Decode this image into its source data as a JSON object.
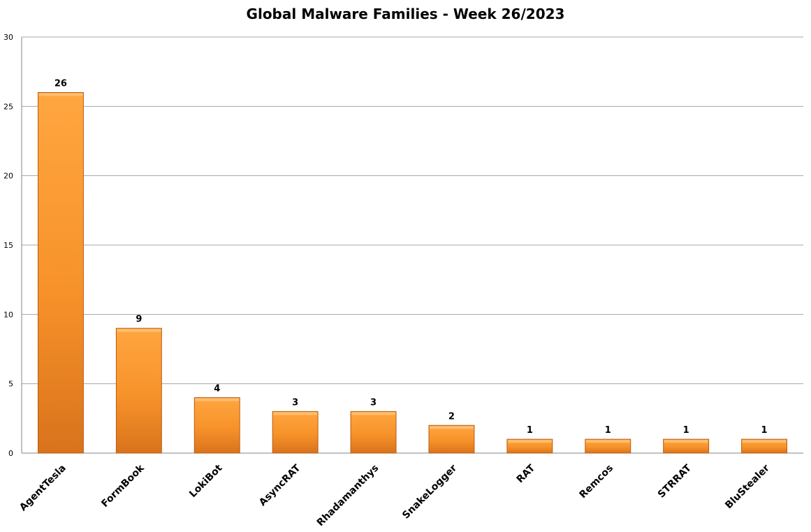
{
  "chart_data": {
    "type": "bar",
    "title": "Global Malware Families - Week 26/2023",
    "xlabel": "",
    "ylabel": "",
    "categories": [
      "AgentTesla",
      "FormBook",
      "LokiBot",
      "AsyncRAT",
      "Rhadamanthys",
      "SnakeLogger",
      "RAT",
      "Remcos",
      "STRRAT",
      "BluStealer"
    ],
    "values": [
      26,
      9,
      4,
      3,
      3,
      2,
      1,
      1,
      1,
      1
    ],
    "ylim": [
      0,
      30
    ],
    "yticks": [
      0,
      5,
      10,
      15,
      20,
      25,
      30
    ],
    "grid": true,
    "legend": "none",
    "data_labels": true,
    "colors": {
      "bar_light": "#ffa640",
      "bar_mid": "#f7922a",
      "bar_dark": "#d9731c",
      "bar_edge": "#b85c12",
      "grid": "#a6a6a6",
      "axis": "#868686"
    }
  }
}
